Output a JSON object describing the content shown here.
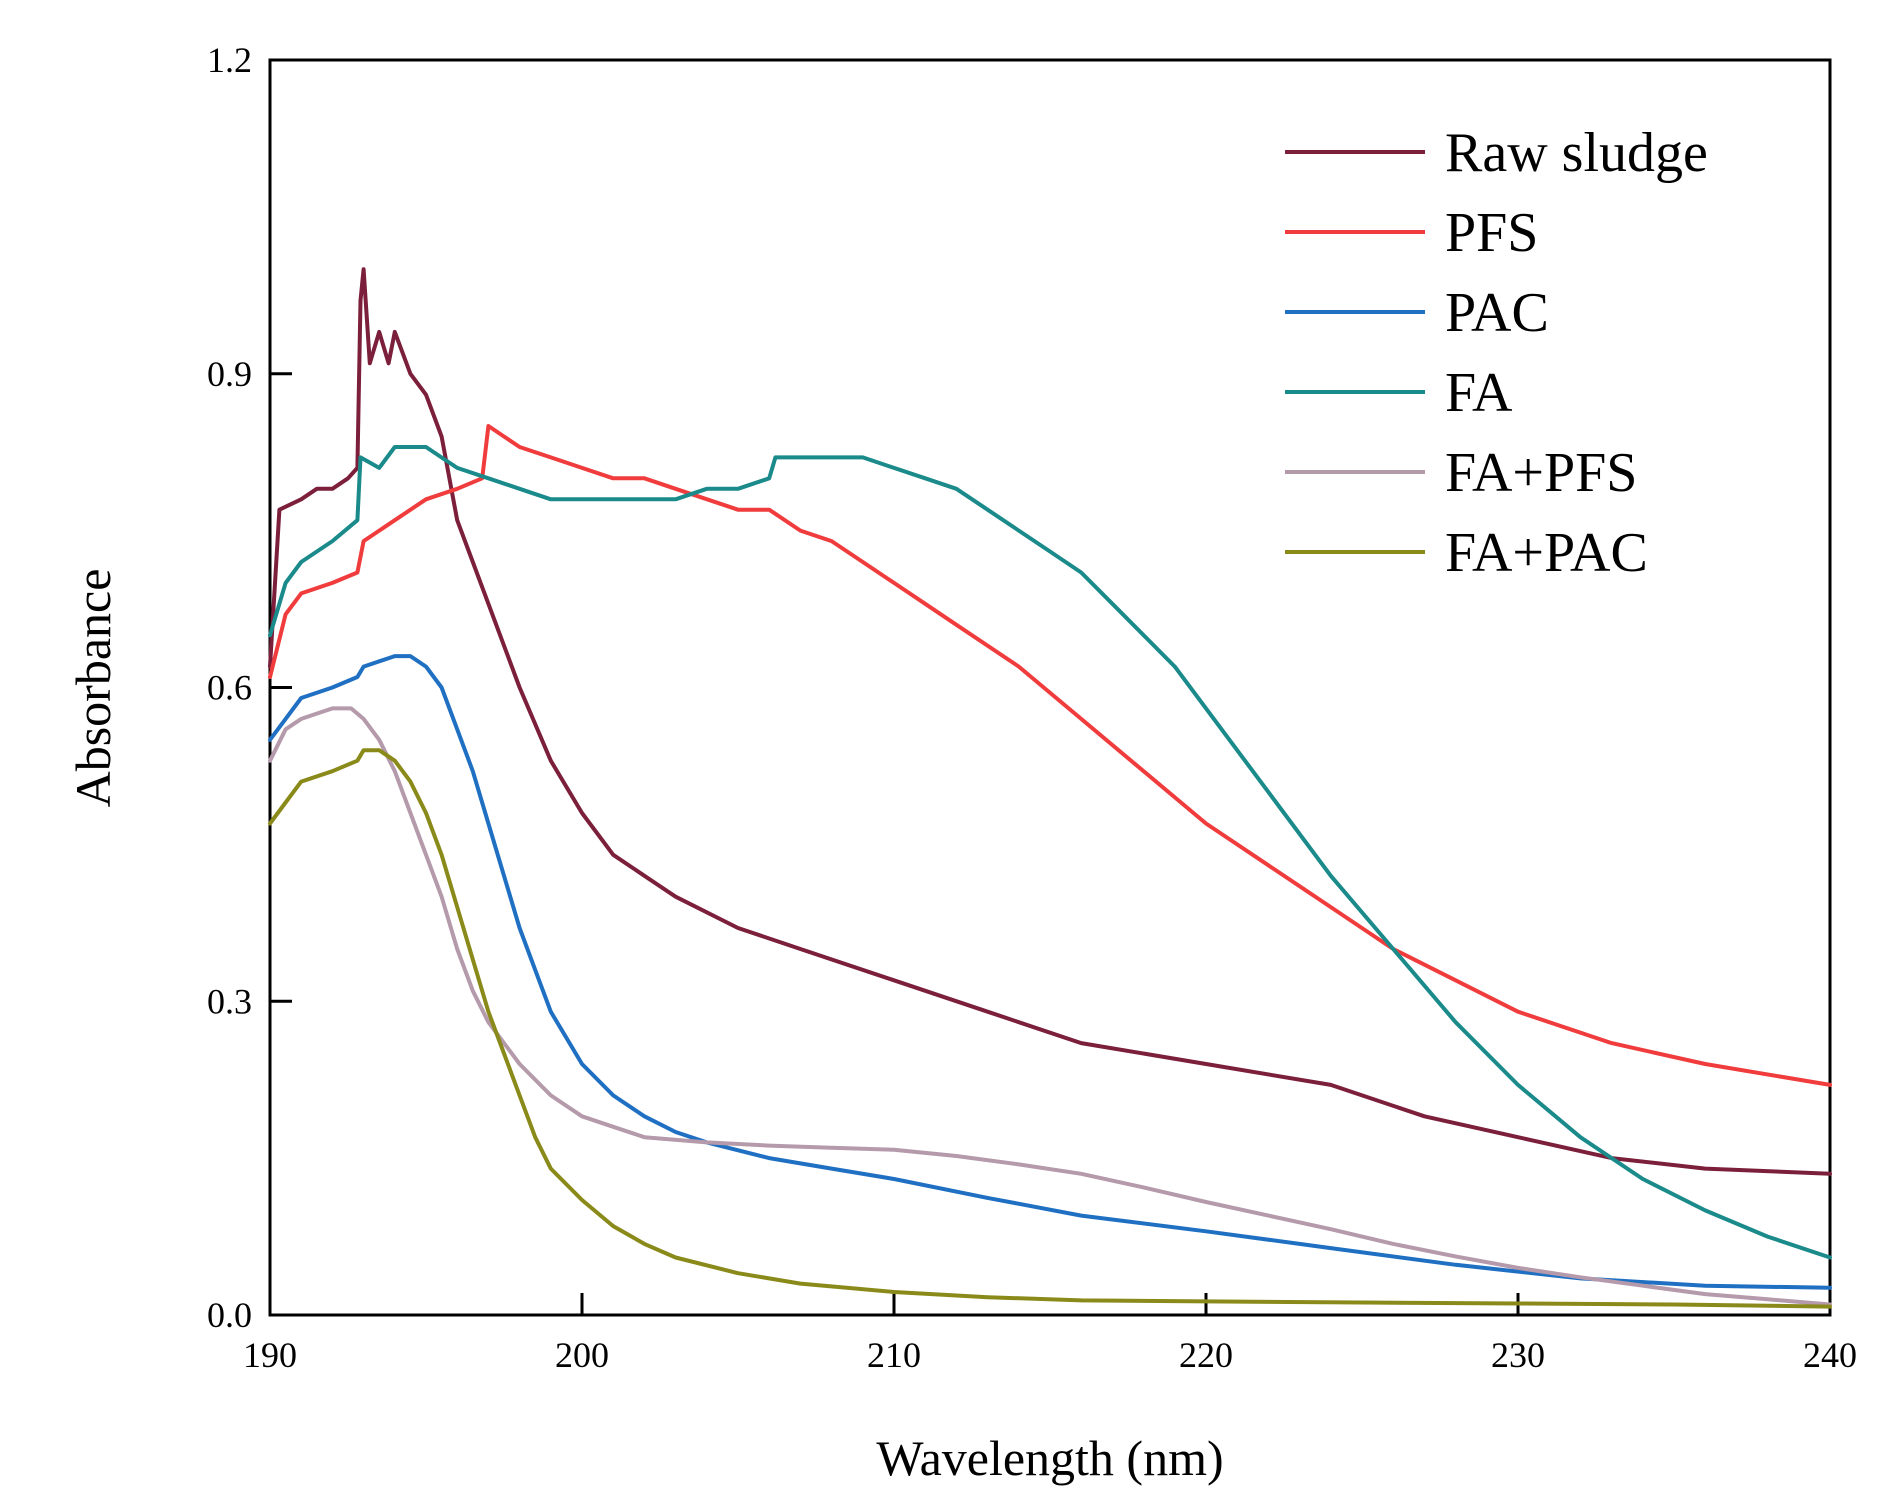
{
  "chart_data": {
    "type": "line",
    "title": "",
    "xlabel": "Wavelength (nm)",
    "ylabel": "Absorbance",
    "xlim": [
      190,
      240
    ],
    "ylim": [
      0.0,
      1.2
    ],
    "x_ticks": [
      190,
      200,
      210,
      220,
      230,
      240
    ],
    "y_ticks": [
      0.0,
      0.3,
      0.6,
      0.9,
      1.2
    ],
    "x_tick_labels": [
      "190",
      "200",
      "210",
      "220",
      "230",
      "240"
    ],
    "y_tick_labels": [
      "0.0",
      "0.3",
      "0.6",
      "0.9",
      "1.2"
    ],
    "grid": false,
    "legend_position": "top-right",
    "series": [
      {
        "name": "Raw sludge",
        "color": "#7b1f3a",
        "points": [
          [
            190,
            0.62
          ],
          [
            190.3,
            0.77
          ],
          [
            191,
            0.78
          ],
          [
            191.5,
            0.79
          ],
          [
            192,
            0.79
          ],
          [
            192.5,
            0.8
          ],
          [
            192.8,
            0.81
          ],
          [
            192.9,
            0.97
          ],
          [
            193,
            1.0
          ],
          [
            193.2,
            0.91
          ],
          [
            193.5,
            0.94
          ],
          [
            193.8,
            0.91
          ],
          [
            194,
            0.94
          ],
          [
            194.5,
            0.9
          ],
          [
            195,
            0.88
          ],
          [
            195.5,
            0.84
          ],
          [
            196,
            0.76
          ],
          [
            196.5,
            0.72
          ],
          [
            197,
            0.68
          ],
          [
            198,
            0.6
          ],
          [
            199,
            0.53
          ],
          [
            200,
            0.48
          ],
          [
            201,
            0.44
          ],
          [
            202,
            0.42
          ],
          [
            203,
            0.4
          ],
          [
            205,
            0.37
          ],
          [
            207,
            0.35
          ],
          [
            210,
            0.32
          ],
          [
            213,
            0.29
          ],
          [
            216,
            0.26
          ],
          [
            220,
            0.24
          ],
          [
            224,
            0.22
          ],
          [
            227,
            0.19
          ],
          [
            230,
            0.17
          ],
          [
            233,
            0.15
          ],
          [
            236,
            0.14
          ],
          [
            240,
            0.135
          ]
        ]
      },
      {
        "name": "PFS",
        "color": "#f03c3c",
        "points": [
          [
            190,
            0.61
          ],
          [
            190.5,
            0.67
          ],
          [
            191,
            0.69
          ],
          [
            192,
            0.7
          ],
          [
            192.8,
            0.71
          ],
          [
            193,
            0.74
          ],
          [
            194,
            0.76
          ],
          [
            195,
            0.78
          ],
          [
            196,
            0.79
          ],
          [
            196.8,
            0.8
          ],
          [
            197,
            0.85
          ],
          [
            198,
            0.83
          ],
          [
            199,
            0.82
          ],
          [
            200,
            0.81
          ],
          [
            201,
            0.8
          ],
          [
            202,
            0.8
          ],
          [
            203,
            0.79
          ],
          [
            205,
            0.77
          ],
          [
            206,
            0.77
          ],
          [
            207,
            0.75
          ],
          [
            208,
            0.74
          ],
          [
            209,
            0.72
          ],
          [
            210,
            0.7
          ],
          [
            211,
            0.68
          ],
          [
            212,
            0.66
          ],
          [
            214,
            0.62
          ],
          [
            216,
            0.57
          ],
          [
            218,
            0.52
          ],
          [
            220,
            0.47
          ],
          [
            222,
            0.43
          ],
          [
            224,
            0.39
          ],
          [
            226,
            0.35
          ],
          [
            228,
            0.32
          ],
          [
            230,
            0.29
          ],
          [
            233,
            0.26
          ],
          [
            236,
            0.24
          ],
          [
            240,
            0.22
          ]
        ]
      },
      {
        "name": "PAC",
        "color": "#1f6fc2",
        "points": [
          [
            190,
            0.55
          ],
          [
            190.5,
            0.57
          ],
          [
            191,
            0.59
          ],
          [
            192,
            0.6
          ],
          [
            192.8,
            0.61
          ],
          [
            193,
            0.62
          ],
          [
            194,
            0.63
          ],
          [
            194.5,
            0.63
          ],
          [
            195,
            0.62
          ],
          [
            195.5,
            0.6
          ],
          [
            196,
            0.56
          ],
          [
            196.5,
            0.52
          ],
          [
            197,
            0.47
          ],
          [
            197.5,
            0.42
          ],
          [
            198,
            0.37
          ],
          [
            198.5,
            0.33
          ],
          [
            199,
            0.29
          ],
          [
            200,
            0.24
          ],
          [
            201,
            0.21
          ],
          [
            202,
            0.19
          ],
          [
            203,
            0.175
          ],
          [
            204,
            0.165
          ],
          [
            206,
            0.15
          ],
          [
            208,
            0.14
          ],
          [
            210,
            0.13
          ],
          [
            213,
            0.112
          ],
          [
            216,
            0.095
          ],
          [
            220,
            0.08
          ],
          [
            224,
            0.064
          ],
          [
            228,
            0.048
          ],
          [
            232,
            0.035
          ],
          [
            236,
            0.028
          ],
          [
            240,
            0.026
          ]
        ]
      },
      {
        "name": "FA",
        "color": "#1a8a8a",
        "points": [
          [
            190,
            0.65
          ],
          [
            190.5,
            0.7
          ],
          [
            191,
            0.72
          ],
          [
            192,
            0.74
          ],
          [
            192.8,
            0.76
          ],
          [
            192.9,
            0.82
          ],
          [
            193.5,
            0.81
          ],
          [
            194,
            0.83
          ],
          [
            195,
            0.83
          ],
          [
            196,
            0.81
          ],
          [
            197,
            0.8
          ],
          [
            198,
            0.79
          ],
          [
            199,
            0.78
          ],
          [
            200,
            0.78
          ],
          [
            201,
            0.78
          ],
          [
            202,
            0.78
          ],
          [
            203,
            0.78
          ],
          [
            204,
            0.79
          ],
          [
            205,
            0.79
          ],
          [
            206,
            0.8
          ],
          [
            206.2,
            0.82
          ],
          [
            207,
            0.82
          ],
          [
            208,
            0.82
          ],
          [
            209,
            0.82
          ],
          [
            210,
            0.81
          ],
          [
            211,
            0.8
          ],
          [
            212,
            0.79
          ],
          [
            213,
            0.77
          ],
          [
            214,
            0.75
          ],
          [
            215,
            0.73
          ],
          [
            216,
            0.71
          ],
          [
            217,
            0.68
          ],
          [
            218,
            0.65
          ],
          [
            219,
            0.62
          ],
          [
            220,
            0.58
          ],
          [
            222,
            0.5
          ],
          [
            224,
            0.42
          ],
          [
            226,
            0.35
          ],
          [
            228,
            0.28
          ],
          [
            230,
            0.22
          ],
          [
            232,
            0.17
          ],
          [
            234,
            0.13
          ],
          [
            236,
            0.1
          ],
          [
            238,
            0.075
          ],
          [
            240,
            0.055
          ]
        ]
      },
      {
        "name": "FA+PFS",
        "color": "#b49aaa",
        "points": [
          [
            190,
            0.53
          ],
          [
            190.5,
            0.56
          ],
          [
            191,
            0.57
          ],
          [
            192,
            0.58
          ],
          [
            192.6,
            0.58
          ],
          [
            193,
            0.57
          ],
          [
            193.5,
            0.55
          ],
          [
            194,
            0.52
          ],
          [
            194.5,
            0.48
          ],
          [
            195,
            0.44
          ],
          [
            195.5,
            0.4
          ],
          [
            196,
            0.35
          ],
          [
            196.5,
            0.31
          ],
          [
            197,
            0.28
          ],
          [
            198,
            0.24
          ],
          [
            199,
            0.21
          ],
          [
            200,
            0.19
          ],
          [
            201,
            0.18
          ],
          [
            202,
            0.17
          ],
          [
            204,
            0.165
          ],
          [
            206,
            0.162
          ],
          [
            208,
            0.16
          ],
          [
            210,
            0.158
          ],
          [
            212,
            0.152
          ],
          [
            214,
            0.144
          ],
          [
            216,
            0.135
          ],
          [
            218,
            0.122
          ],
          [
            220,
            0.108
          ],
          [
            222,
            0.095
          ],
          [
            224,
            0.082
          ],
          [
            226,
            0.068
          ],
          [
            228,
            0.056
          ],
          [
            230,
            0.045
          ],
          [
            232,
            0.036
          ],
          [
            234,
            0.028
          ],
          [
            236,
            0.02
          ],
          [
            238,
            0.015
          ],
          [
            240,
            0.01
          ]
        ]
      },
      {
        "name": "FA+PAC",
        "color": "#8a8a1a",
        "points": [
          [
            190,
            0.47
          ],
          [
            190.5,
            0.49
          ],
          [
            191,
            0.51
          ],
          [
            192,
            0.52
          ],
          [
            192.8,
            0.53
          ],
          [
            193,
            0.54
          ],
          [
            193.5,
            0.54
          ],
          [
            194,
            0.53
          ],
          [
            194.5,
            0.51
          ],
          [
            195,
            0.48
          ],
          [
            195.5,
            0.44
          ],
          [
            196,
            0.39
          ],
          [
            196.5,
            0.34
          ],
          [
            197,
            0.29
          ],
          [
            197.5,
            0.25
          ],
          [
            198,
            0.21
          ],
          [
            198.5,
            0.17
          ],
          [
            199,
            0.14
          ],
          [
            200,
            0.11
          ],
          [
            201,
            0.085
          ],
          [
            202,
            0.068
          ],
          [
            203,
            0.055
          ],
          [
            205,
            0.04
          ],
          [
            207,
            0.03
          ],
          [
            210,
            0.022
          ],
          [
            213,
            0.017
          ],
          [
            216,
            0.014
          ],
          [
            220,
            0.013
          ],
          [
            225,
            0.012
          ],
          [
            230,
            0.011
          ],
          [
            235,
            0.01
          ],
          [
            240,
            0.008
          ]
        ]
      }
    ]
  }
}
